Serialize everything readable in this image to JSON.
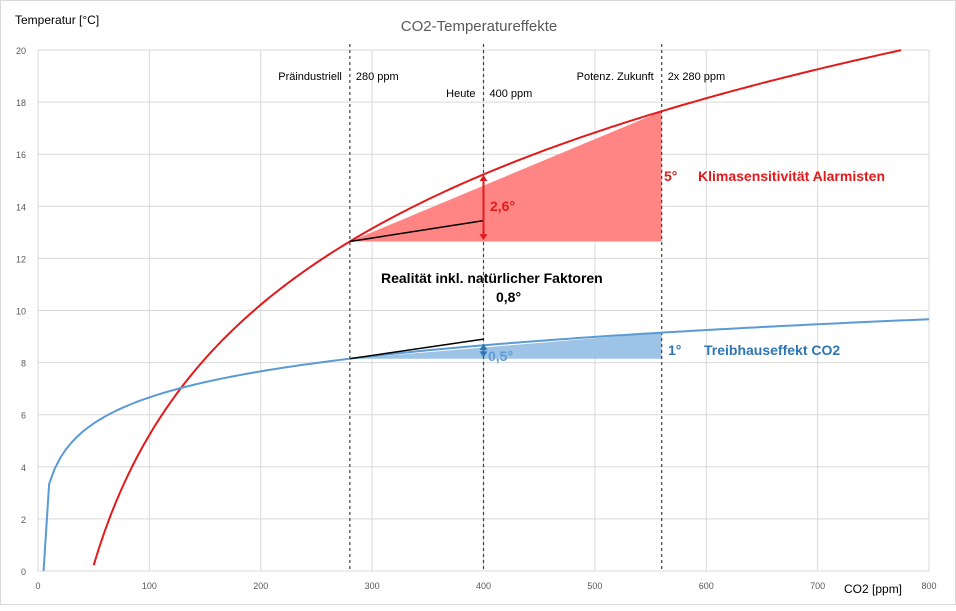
{
  "chart_data": {
    "type": "line",
    "title": "CO2-Temperatureffekte",
    "ylabel": "Temperatur [°C]",
    "xlabel": "CO2 [ppm]",
    "xlim": [
      0,
      800
    ],
    "ylim": [
      0,
      20
    ],
    "x_ticks": [
      0,
      100,
      200,
      300,
      400,
      500,
      600,
      700,
      800
    ],
    "y_ticks": [
      0,
      2,
      4,
      6,
      8,
      10,
      12,
      14,
      16,
      18,
      20
    ],
    "grid": true,
    "colors": {
      "red": "#e31a1c",
      "red_fill": "#ff8585",
      "blue": "#5b9bd5",
      "blue_fill": "#9dc3e6",
      "blue_text": "#2e75b6",
      "black": "#000000"
    },
    "series": [
      {
        "label": "Klimasensitivität Alarmisten",
        "color": "#e31a1c",
        "sensitivity_per_doubling": 5,
        "x": [
          50,
          80,
          100,
          130,
          160,
          200,
          240,
          280,
          320,
          360,
          400,
          450,
          500,
          560,
          620,
          680,
          740,
          775
        ],
        "y": [
          0.2,
          3.6,
          5.2,
          7.1,
          8.6,
          10.2,
          11.5,
          12.65,
          13.6,
          14.5,
          15.25,
          16.1,
          16.85,
          17.65,
          18.4,
          19.0,
          19.6,
          20.0
        ]
      },
      {
        "label": "Treibhauseffekt CO2",
        "color": "#5b9bd5",
        "sensitivity_per_doubling": 1,
        "x": [
          5,
          10,
          20,
          30,
          50,
          75,
          100,
          150,
          200,
          280,
          400,
          560,
          700,
          800
        ],
        "y": [
          0,
          3.35,
          4.35,
          4.9,
          5.66,
          6.24,
          6.66,
          7.24,
          7.66,
          8.15,
          8.66,
          9.15,
          9.47,
          9.66
        ]
      }
    ],
    "vertical_lines": [
      {
        "x": 280,
        "left_label": "Präindustriell",
        "right_label": "280 ppm"
      },
      {
        "x": 400,
        "left_label": "Heute",
        "right_label": "400 ppm"
      },
      {
        "x": 560,
        "left_label": "Potenz. Zukunft",
        "right_label": "2x 280 ppm"
      }
    ],
    "annotations": {
      "red_delta": "5°",
      "red_series_label": "Klimasensitivität Alarmisten",
      "red_today": "2,6°",
      "reality": "Realität inkl. natürlicher Faktoren",
      "reality_value": "0,8°",
      "blue_delta": "1°",
      "blue_series_label": "Treibhauseffekt CO2",
      "blue_today": "0,5°"
    },
    "black_lines": [
      {
        "x": [
          280,
          400
        ],
        "y": [
          12.65,
          13.45
        ]
      },
      {
        "x": [
          280,
          400
        ],
        "y": [
          8.15,
          8.9
        ]
      }
    ]
  }
}
